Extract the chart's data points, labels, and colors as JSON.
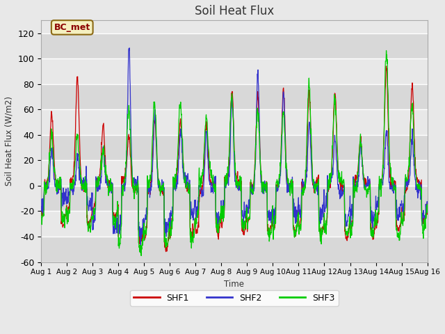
{
  "title": "Soil Heat Flux",
  "ylabel": "Soil Heat Flux (W/m2)",
  "xlabel": "Time",
  "ylim": [
    -60,
    130
  ],
  "yticks": [
    -60,
    -40,
    -20,
    0,
    20,
    40,
    60,
    80,
    100,
    120
  ],
  "background_color": "#e8e8e8",
  "plot_bg_color": "#e0e0e0",
  "shf1_color": "#cc0000",
  "shf2_color": "#3333cc",
  "shf3_color": "#00cc00",
  "legend_label1": "SHF1",
  "legend_label2": "SHF2",
  "legend_label3": "SHF3",
  "station_label": "BC_met",
  "n_points": 1440,
  "days": 15
}
